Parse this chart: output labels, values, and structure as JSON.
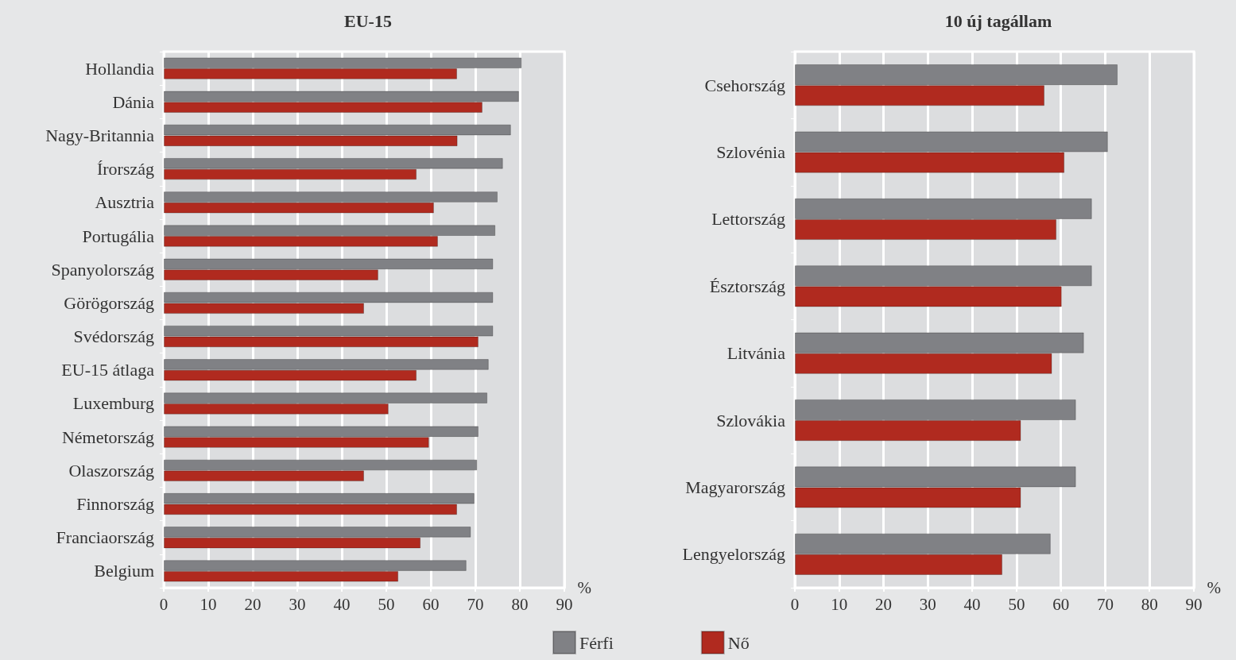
{
  "chart_data": [
    {
      "type": "bar",
      "orientation": "horizontal",
      "title": "EU-15",
      "xlabel": "%",
      "categories": [
        "Hollandia",
        "Dánia",
        "Nagy-Britannia",
        "Írország",
        "Ausztria",
        "Portugália",
        "Spanyolország",
        "Görögország",
        "Svédország",
        "EU-15 átlaga",
        "Luxemburg",
        "Németország",
        "Olaszország",
        "Finnország",
        "Franciaország",
        "Belgium"
      ],
      "series": [
        {
          "name": "Férfi",
          "color": "#808185",
          "values": [
            80.4,
            79.8,
            78,
            76.2,
            75,
            74.5,
            74,
            74,
            74,
            73,
            72.7,
            70.7,
            70.4,
            69.8,
            69,
            68
          ]
        },
        {
          "name": "Nő",
          "color": "#b02a1f",
          "values": [
            65.9,
            71.6,
            66,
            56.8,
            60.7,
            61.6,
            48.2,
            45,
            70.7,
            56.8,
            50.5,
            59.6,
            45,
            65.9,
            57.7,
            52.7
          ]
        }
      ],
      "xlim": [
        0,
        90
      ],
      "xticks": [
        0,
        10,
        20,
        30,
        40,
        50,
        60,
        70,
        80,
        90
      ],
      "grid": "x",
      "legend": "bottom"
    },
    {
      "type": "bar",
      "orientation": "horizontal",
      "title": "10 új tagállam",
      "xlabel": "%",
      "categories": [
        "Csehország",
        "Szlovénia",
        "Lettország",
        "Észtország",
        "Litvánia",
        "Szlovákia",
        "Magyarország",
        "Lengyelország"
      ],
      "series": [
        {
          "color": "#808185",
          "values": [
            72.8,
            70.6,
            67,
            67,
            65.2,
            63.4,
            63.4,
            57.7
          ]
        },
        {
          "color": "#b02a1f",
          "values": [
            56.3,
            60.8,
            59,
            60.2,
            58,
            51,
            51,
            46.8
          ]
        }
      ],
      "xlim": [
        0,
        90
      ],
      "xticks": [
        0,
        10,
        20,
        30,
        40,
        50,
        60,
        70,
        80,
        90
      ],
      "grid": "x",
      "legend": false
    }
  ]
}
